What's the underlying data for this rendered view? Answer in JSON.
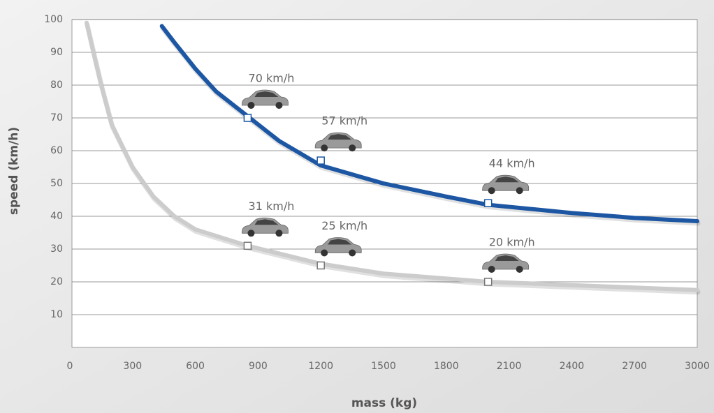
{
  "chart_data": {
    "type": "line",
    "x_label": "mass (kg)",
    "y_label": "speed (km/h)",
    "xlim": [
      0,
      3000
    ],
    "ylim": [
      0,
      100
    ],
    "xticks": [
      0,
      300,
      600,
      900,
      1200,
      1500,
      1800,
      2100,
      2400,
      2700,
      3000
    ],
    "yticks": [
      10,
      20,
      30,
      40,
      50,
      60,
      70,
      80,
      90,
      100
    ],
    "grid": true,
    "series": [
      {
        "color": "#1d57a3",
        "x": [
          440,
          500,
          600,
          700,
          850,
          1000,
          1200,
          1500,
          1800,
          2000,
          2400,
          2700,
          3000
        ],
        "values": [
          98,
          93,
          85,
          78,
          70.5,
          63,
          55.5,
          50,
          46,
          43.5,
          41,
          39.5,
          38.5
        ]
      },
      {
        "color": "#cccccc",
        "x": [
          80,
          120,
          150,
          200,
          300,
          400,
          500,
          600,
          850,
          1200,
          1500,
          2000,
          2400,
          3000
        ],
        "values": [
          99,
          88,
          80,
          68,
          55,
          46,
          40,
          36,
          31,
          25.5,
          22.5,
          20,
          19,
          17.5
        ]
      }
    ],
    "points": [
      {
        "color": "#1d57a3",
        "x": [
          850,
          1200,
          2000
        ],
        "values": [
          70,
          57,
          44
        ],
        "value_labels": [
          "70 km/h",
          "57 km/h",
          "44 km/h"
        ]
      },
      {
        "color": "#777777",
        "x": [
          850,
          1200,
          2000
        ],
        "values": [
          31,
          25,
          20
        ],
        "value_labels": [
          "31 km/h",
          "25 km/h",
          "20 km/h"
        ]
      }
    ]
  }
}
